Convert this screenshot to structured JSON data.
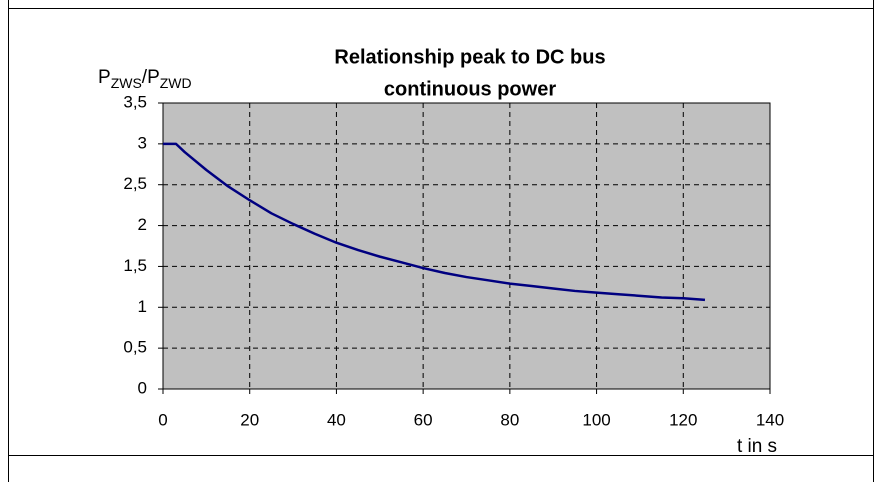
{
  "chart_data": {
    "type": "line",
    "title": [
      "Relationship peak to DC bus",
      "continuous power"
    ],
    "ylabel": {
      "base1": "P",
      "sub1": "ZWS",
      "base2": "/P",
      "sub2": "ZWD"
    },
    "xlabel": "t in s",
    "x": [
      0,
      3,
      5,
      10,
      15,
      20,
      25,
      30,
      35,
      40,
      45,
      50,
      55,
      60,
      65,
      70,
      75,
      80,
      85,
      90,
      95,
      100,
      105,
      110,
      115,
      120,
      125
    ],
    "series": [
      {
        "color": "#000080",
        "values": [
          3,
          3,
          2.9,
          2.68,
          2.48,
          2.31,
          2.15,
          2.02,
          1.9,
          1.79,
          1.7,
          1.62,
          1.55,
          1.48,
          1.42,
          1.37,
          1.33,
          1.29,
          1.26,
          1.23,
          1.2,
          1.18,
          1.16,
          1.14,
          1.12,
          1.11,
          1.09
        ]
      }
    ],
    "xlim": [
      0,
      140
    ],
    "xticks": [
      0,
      20,
      40,
      60,
      80,
      100,
      120,
      140
    ],
    "ylim": [
      0,
      3.5
    ],
    "yticks": [
      0,
      {
        "value": 0.5,
        "label": "0,5"
      },
      1,
      {
        "value": 1.5,
        "label": "1,5"
      },
      2,
      {
        "value": 2.5,
        "label": "2,5"
      },
      3,
      {
        "value": 3.5,
        "label": "3,5"
      }
    ],
    "grid": true,
    "plot_background": "#c0c0c0"
  }
}
